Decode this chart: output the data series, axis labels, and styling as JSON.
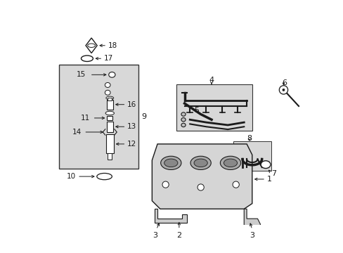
{
  "background_color": "#ffffff",
  "fig_width": 4.89,
  "fig_height": 3.6,
  "dpi": 100,
  "gray_box": "#d8d8d8",
  "dark": "#1a1a1a",
  "line_color": "#333333"
}
